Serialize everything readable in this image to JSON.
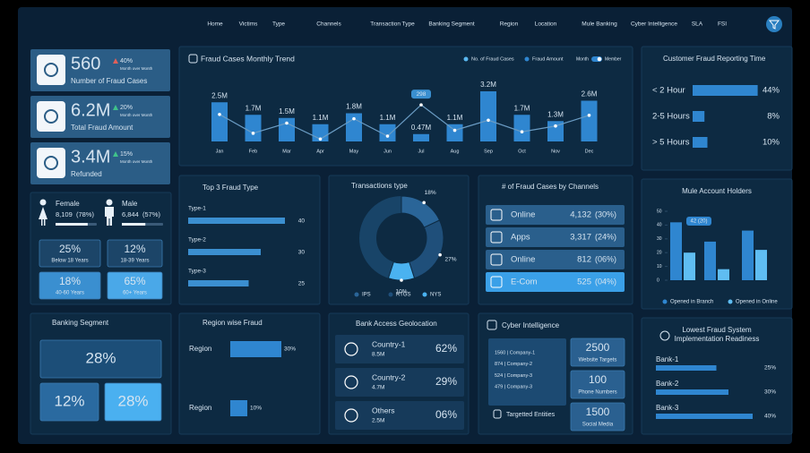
{
  "nav": [
    "Home",
    "Victims",
    "Type",
    "Channels",
    "Transaction Type",
    "Banking Segment",
    "Region",
    "Location",
    "Mule Banking",
    "Cyber Intelligence",
    "SLA",
    "FSI"
  ],
  "kpis": [
    {
      "value": "560",
      "label": "Number of Fraud Cases",
      "change": "40%",
      "note": "Month over Month",
      "change_color": "#e0605a"
    },
    {
      "value": "6.2M",
      "label": "Total Fraud Amount",
      "change": "20%",
      "note": "Month over Month",
      "change_color": "#3fc28a"
    },
    {
      "value": "3.4M",
      "label": "Refunded",
      "change": "15%",
      "note": "Month over Month",
      "change_color": "#3fc28a"
    }
  ],
  "gender": [
    {
      "name": "Female",
      "value": "8,109",
      "share": "(78%)",
      "pct": 78
    },
    {
      "name": "Male",
      "value": "6,844",
      "share": "(57%)",
      "pct": 57
    }
  ],
  "age": [
    {
      "value": "25%",
      "label": "Below 18 Years"
    },
    {
      "value": "12%",
      "label": "18-39 Years"
    },
    {
      "value": "18%",
      "label": "40-60 Years"
    },
    {
      "value": "65%",
      "label": "60+ Years"
    }
  ],
  "trend": {
    "title": "Fraud Cases Monthly Trend",
    "legend": [
      "No. of Fraud Cases",
      "Fraud Amount"
    ],
    "toggle": [
      "Month",
      "Member"
    ],
    "categories": [
      "Jan",
      "Feb",
      "Mar",
      "Apr",
      "May",
      "Jun",
      "Jul",
      "Aug",
      "Sep",
      "Oct",
      "Nov",
      "Dec"
    ],
    "amounts": [
      2.5,
      1.7,
      1.5,
      1.1,
      1.8,
      1.1,
      0.47,
      1.1,
      3.2,
      1.7,
      1.3,
      2.6
    ],
    "amount_labels": [
      "2.5M",
      "1.7M",
      "1.5M",
      "1.1M",
      "1.8M",
      "1.1M",
      "0.47M",
      "1.1M",
      "3.2M",
      "1.7M",
      "1.3M",
      "2.6M"
    ],
    "cases": [
      265,
      200,
      235,
      180,
      250,
      190,
      298,
      210,
      245,
      205,
      225,
      262
    ]
  },
  "fraud_type": {
    "title": "Top 3 Fraud Type",
    "items": [
      {
        "name": "Type-1",
        "value": 40
      },
      {
        "name": "Type-2",
        "value": 30
      },
      {
        "name": "Type-3",
        "value": 25
      }
    ]
  },
  "transactions": {
    "title": "Transactions type",
    "values": [
      18,
      27,
      10
    ],
    "value_labels": [
      "18%",
      "27%",
      "10%"
    ],
    "legend": [
      "IPS",
      "RTGS",
      "NYS"
    ],
    "colors": [
      "#2a6598",
      "#1f4f7a",
      "#4ab2f0"
    ]
  },
  "channels": {
    "title": "# of Fraud Cases by Channels",
    "items": [
      {
        "name": "Online",
        "value": "4,132",
        "share": "(30%)"
      },
      {
        "name": "Apps",
        "value": "3,317",
        "share": "(24%)"
      },
      {
        "name": "Online",
        "value": "812",
        "share": "(06%)"
      },
      {
        "name": "E-Com",
        "value": "525",
        "share": "(04%)"
      }
    ]
  },
  "reporting": {
    "title": "Customer Fraud Reporting Time",
    "items": [
      {
        "name": "< 2 Hour",
        "value": 44,
        "label": "44%"
      },
      {
        "name": "2-5 Hours",
        "value": 8,
        "label": "8%"
      },
      {
        "name": "> 5 Hours",
        "value": 10,
        "label": "10%"
      }
    ]
  },
  "mule": {
    "title": "Mule Account Holders",
    "ylim": [
      0,
      50
    ],
    "yticks": [
      0,
      10,
      20,
      30,
      40,
      50
    ],
    "annotation": "42 (20)",
    "series": [
      {
        "name": "Opened in Branch",
        "color": "#2f86d0",
        "values": [
          42,
          28,
          36
        ]
      },
      {
        "name": "Opened in Online",
        "color": "#5fbdf2",
        "values": [
          20,
          8,
          22
        ]
      }
    ]
  },
  "readiness": {
    "title": "Lowest Fraud System Implementation Readiness",
    "items": [
      {
        "name": "Bank-1",
        "value": 25,
        "label": "25%"
      },
      {
        "name": "Bank-2",
        "value": 30,
        "label": "30%"
      },
      {
        "name": "Bank-3",
        "value": 40,
        "label": "40%"
      }
    ]
  },
  "segment": {
    "title": "Banking Segment",
    "values": [
      "28%",
      "12%",
      "28%"
    ]
  },
  "region": {
    "title": "Region wise Fraud",
    "items": [
      {
        "name": "Region",
        "value": 30,
        "label": "30%"
      },
      {
        "name": "Region",
        "value": 10,
        "label": "10%"
      }
    ]
  },
  "geo": {
    "title": "Bank Access Geolocation",
    "items": [
      {
        "name": "Country-1",
        "amount": "8.5M",
        "share": "62%"
      },
      {
        "name": "Country-2",
        "amount": "4.7M",
        "share": "29%"
      },
      {
        "name": "Others",
        "amount": "2.5M",
        "share": "06%"
      }
    ]
  },
  "cyber": {
    "title": "Cyber Intelligence",
    "companies": [
      "1560 | Company-1",
      "874 | Company-2",
      "524 | Company-3",
      "479 | Company-3"
    ],
    "entities": "Targetted Entities",
    "stats": [
      {
        "value": "2500",
        "label": "Website Targets"
      },
      {
        "value": "100",
        "label": "Phone Numbers"
      },
      {
        "value": "1500",
        "label": "Social Media"
      }
    ]
  }
}
